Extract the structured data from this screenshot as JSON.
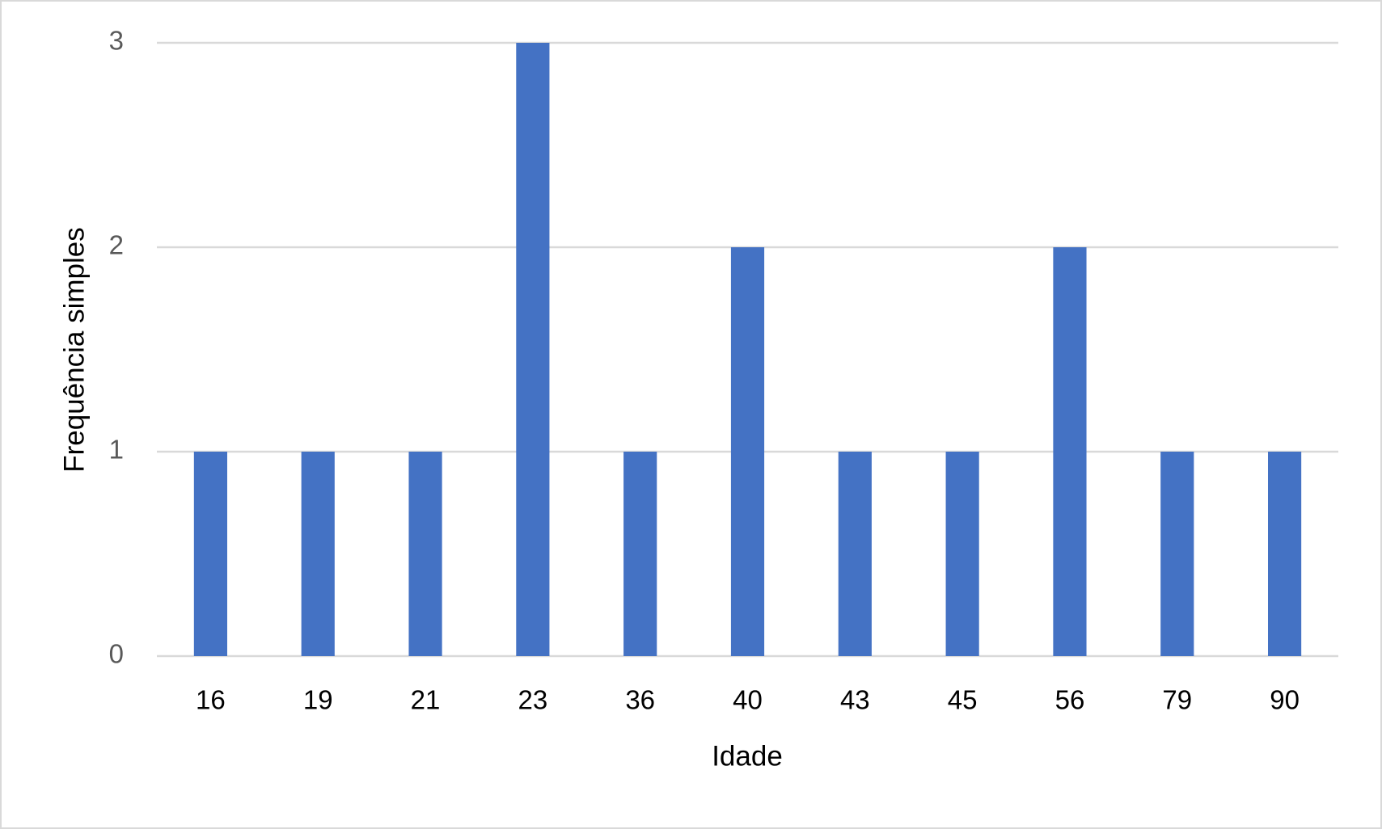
{
  "chart_data": {
    "type": "bar",
    "x_label": "Idade",
    "y_label": "Frequência simples",
    "categories": [
      "16",
      "19",
      "21",
      "23",
      "36",
      "40",
      "43",
      "45",
      "56",
      "79",
      "90"
    ],
    "values": [
      1,
      1,
      1,
      3,
      1,
      2,
      1,
      1,
      2,
      1,
      1
    ],
    "color": "#4472c4",
    "ylim": [
      0,
      3
    ],
    "yticks": [
      0,
      1,
      2,
      3
    ],
    "grid": true
  }
}
